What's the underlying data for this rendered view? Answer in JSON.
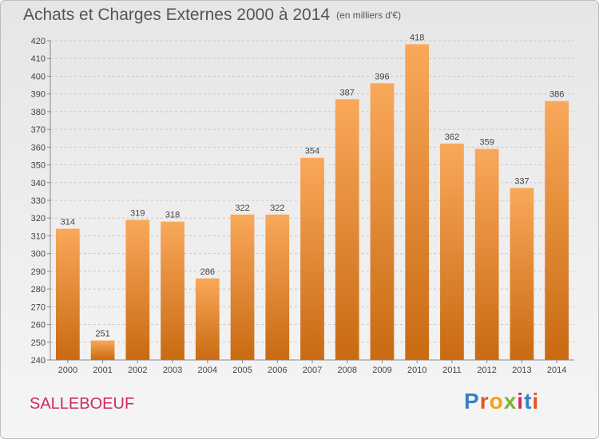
{
  "title": "Achats et Charges Externes 2000 à 2014",
  "subtitle": "(en milliers d'€)",
  "commune": "SALLEBOEUF",
  "logo": {
    "text": "Proxiti",
    "colors": [
      "#3a7fc4",
      "#e8541e",
      "#f0a21a",
      "#7bb530",
      "#cc2b5e",
      "#3a7fc4",
      "#e8541e"
    ]
  },
  "colors": {
    "bar_top": "#f9a85a",
    "bar_bottom": "#c96a12",
    "grid": "#c8c8c8",
    "commune": "#cc2b5e"
  },
  "chart_data": {
    "type": "bar",
    "title": "Achats et Charges Externes 2000 à 2014",
    "subtitle": "(en milliers d'€)",
    "categories": [
      "2000",
      "2001",
      "2002",
      "2003",
      "2004",
      "2005",
      "2006",
      "2007",
      "2008",
      "2009",
      "2010",
      "2011",
      "2012",
      "2013",
      "2014"
    ],
    "values": [
      314,
      251,
      319,
      318,
      286,
      322,
      322,
      354,
      387,
      396,
      418,
      362,
      359,
      337,
      386
    ],
    "ylim": [
      240,
      420
    ],
    "yticks": [
      240,
      250,
      260,
      270,
      280,
      290,
      300,
      310,
      320,
      330,
      340,
      350,
      360,
      370,
      380,
      390,
      400,
      410,
      420
    ],
    "grid": true,
    "xlabel": "",
    "ylabel": ""
  }
}
